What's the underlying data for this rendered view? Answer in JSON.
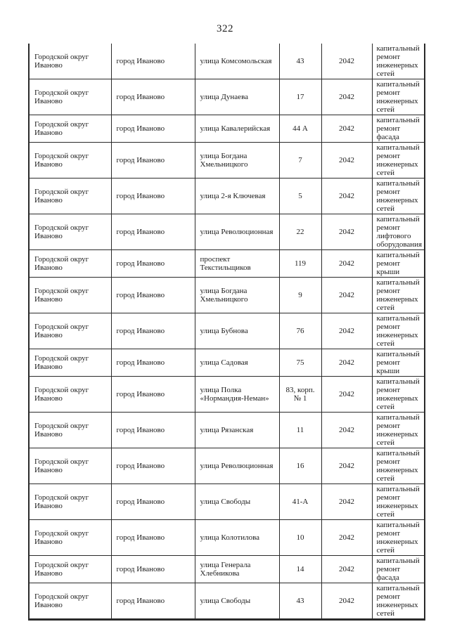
{
  "page": {
    "number": "322"
  },
  "colors": {
    "background": "#ffffff",
    "text": "#1c1c1c",
    "border": "#2a2a2a"
  },
  "table": {
    "columns": [
      "municipality",
      "city",
      "street",
      "house",
      "year",
      "work"
    ],
    "rows": [
      {
        "municipality": "Городской округ Иваново",
        "city": "город Иваново",
        "street": "улица Комсомольская",
        "house": "43",
        "year": "2042",
        "work": "капитальный ремонт инженерных сетей"
      },
      {
        "municipality": "Городской округ Иваново",
        "city": "город Иваново",
        "street": "улица Дунаева",
        "house": "17",
        "year": "2042",
        "work": "капитальный ремонт инженерных сетей"
      },
      {
        "municipality": "Городской округ Иваново",
        "city": "город Иваново",
        "street": "улица Кавалерийская",
        "house": "44 А",
        "year": "2042",
        "work": "капитальный ремонт фасада"
      },
      {
        "municipality": "Городской округ Иваново",
        "city": "город Иваново",
        "street": "улица Богдана Хмельницкого",
        "house": "7",
        "year": "2042",
        "work": "капитальный ремонт инженерных сетей"
      },
      {
        "municipality": "Городской округ Иваново",
        "city": "город Иваново",
        "street": "улица 2-я Ключевая",
        "house": "5",
        "year": "2042",
        "work": "капитальный ремонт инженерных сетей"
      },
      {
        "municipality": "Городской округ Иваново",
        "city": "город Иваново",
        "street": "улица Революционная",
        "house": "22",
        "year": "2042",
        "work": "капитальный ремонт лифтового оборудования"
      },
      {
        "municipality": "Городской округ Иваново",
        "city": "город Иваново",
        "street": "проспект Текстильщиков",
        "house": "119",
        "year": "2042",
        "work": "капитальный ремонт крыши"
      },
      {
        "municipality": "Городской округ Иваново",
        "city": "город Иваново",
        "street": "улица Богдана Хмельницкого",
        "house": "9",
        "year": "2042",
        "work": "капитальный ремонт инженерных сетей"
      },
      {
        "municipality": "Городской округ Иваново",
        "city": "город Иваново",
        "street": "улица Бубнова",
        "house": "76",
        "year": "2042",
        "work": "капитальный ремонт инженерных сетей"
      },
      {
        "municipality": "Городской округ Иваново",
        "city": "город Иваново",
        "street": "улица Садовая",
        "house": "75",
        "year": "2042",
        "work": "капитальный ремонт крыши"
      },
      {
        "municipality": "Городской округ Иваново",
        "city": "город Иваново",
        "street": "улица Полка «Нормандия-Неман»",
        "house": "83, корп. № 1",
        "year": "2042",
        "work": "капитальный ремонт инженерных сетей"
      },
      {
        "municipality": "Городской округ Иваново",
        "city": "город Иваново",
        "street": "улица Рязанская",
        "house": "11",
        "year": "2042",
        "work": "капитальный ремонт инженерных сетей"
      },
      {
        "municipality": "Городской округ Иваново",
        "city": "город Иваново",
        "street": "улица Революционная",
        "house": "16",
        "year": "2042",
        "work": "капитальный ремонт инженерных сетей"
      },
      {
        "municipality": "Городской округ Иваново",
        "city": "город Иваново",
        "street": "улица Свободы",
        "house": "41-А",
        "year": "2042",
        "work": "капитальный ремонт инженерных сетей"
      },
      {
        "municipality": "Городской округ Иваново",
        "city": "город Иваново",
        "street": "улица Колотилова",
        "house": "10",
        "year": "2042",
        "work": "капитальный ремонт инженерных сетей"
      },
      {
        "municipality": "Городской округ Иваново",
        "city": "город Иваново",
        "street": "улица Генерала Хлебникова",
        "house": "14",
        "year": "2042",
        "work": "капитальный ремонт фасада"
      },
      {
        "municipality": "Городской округ Иваново",
        "city": "город Иваново",
        "street": "улица Свободы",
        "house": "43",
        "year": "2042",
        "work": "капитальный ремонт инженерных сетей"
      }
    ]
  }
}
